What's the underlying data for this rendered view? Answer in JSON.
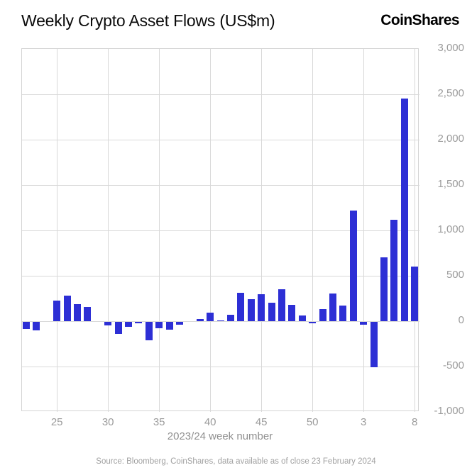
{
  "header": {
    "title": "Weekly Crypto Asset Flows (US$m)",
    "logo": "CoinShares"
  },
  "chart_data": {
    "type": "bar",
    "title": "Weekly Crypto Asset Flows (US$m)",
    "xlabel": "2023/24 week number",
    "ylabel": "",
    "ylim": [
      -1000,
      3000
    ],
    "yticks": [
      3000,
      2500,
      2000,
      1500,
      1000,
      500,
      0,
      -500,
      -1000
    ],
    "ytick_labels": [
      "3,000",
      "2,500",
      "2,000",
      "1,500",
      "1,000",
      "500",
      "0",
      "-500",
      "-1,000"
    ],
    "xticks": [
      25,
      30,
      35,
      40,
      45,
      50,
      3,
      8
    ],
    "grid": true,
    "legend": "none",
    "series_name": "Weekly crypto asset flows (US$m)",
    "weeks": [
      22,
      23,
      24,
      25,
      26,
      27,
      28,
      29,
      30,
      31,
      32,
      33,
      34,
      35,
      36,
      37,
      38,
      39,
      40,
      41,
      42,
      43,
      44,
      45,
      46,
      47,
      48,
      49,
      50,
      51,
      52,
      1,
      2,
      3,
      4,
      5,
      6,
      7,
      8
    ],
    "values": [
      -80,
      -90,
      0,
      230,
      280,
      185,
      160,
      0,
      -40,
      -130,
      -55,
      -15,
      -200,
      -70,
      -85,
      -30,
      0,
      25,
      90,
      10,
      70,
      310,
      245,
      300,
      205,
      350,
      180,
      60,
      -15,
      130,
      305,
      170,
      1220,
      -35,
      -500,
      700,
      1120,
      2450,
      600
    ],
    "bar_color": "#2d2fd5",
    "grid_color": "#d9d9d9"
  },
  "footer": {
    "source": "Source: Bloomberg, CoinShares, data available as of close 23 February 2024"
  }
}
